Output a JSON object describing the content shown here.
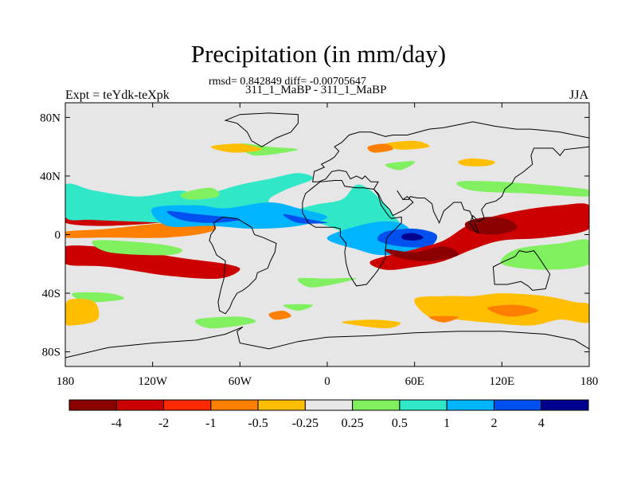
{
  "chart_data": {
    "type": "heatmap",
    "title": "Precipitation (in mm/day)",
    "stats_text": "rmsd= 0.842849 diff= -0.00705647",
    "subtitle": "311_1_MaBP - 311_1_MaBP",
    "left_label": "Expt = teYdk-teXpk",
    "right_label": "JJA",
    "xlim": [
      -180,
      180
    ],
    "ylim": [
      -90,
      90
    ],
    "x_ticks": [
      {
        "value": -180,
        "label": "180"
      },
      {
        "value": -120,
        "label": "120W"
      },
      {
        "value": -60,
        "label": "60W"
      },
      {
        "value": 0,
        "label": "0"
      },
      {
        "value": 60,
        "label": "60E"
      },
      {
        "value": 120,
        "label": "120E"
      },
      {
        "value": 180,
        "label": "180"
      }
    ],
    "y_ticks": [
      {
        "value": 80,
        "label": "80N"
      },
      {
        "value": 40,
        "label": "40N"
      },
      {
        "value": 0,
        "label": "0"
      },
      {
        "value": -40,
        "label": "40S"
      },
      {
        "value": -80,
        "label": "80S"
      }
    ],
    "levels": [
      "-4",
      "-2",
      "-1",
      "-0.5",
      "-0.25",
      "0.25",
      "0.5",
      "1",
      "2",
      "4"
    ],
    "colors": [
      "#8b0000",
      "#cc0000",
      "#ff2800",
      "#ff8000",
      "#ffbe00",
      "#e8e8e8",
      "#80f060",
      "#30e8c8",
      "#00b4ff",
      "#0050f0",
      "#000090"
    ],
    "background_color": "#e6e6e6",
    "anomaly_regions": [
      {
        "level": 1,
        "points": [
          [
            -180,
            16
          ],
          [
            -150,
            14
          ],
          [
            -120,
            16
          ],
          [
            -90,
            20
          ],
          [
            -80,
            18
          ],
          [
            -100,
            10
          ],
          [
            -150,
            6
          ],
          [
            -180,
            8
          ]
        ]
      },
      {
        "level": 1,
        "points": [
          [
            -180,
            -8
          ],
          [
            -140,
            -10
          ],
          [
            -100,
            -16
          ],
          [
            -70,
            -20
          ],
          [
            -60,
            -24
          ],
          [
            -75,
            -30
          ],
          [
            -110,
            -28
          ],
          [
            -150,
            -22
          ],
          [
            -180,
            -20
          ]
        ]
      },
      {
        "level": 3,
        "points": [
          [
            -180,
            2
          ],
          [
            -150,
            4
          ],
          [
            -110,
            8
          ],
          [
            -80,
            8
          ],
          [
            -80,
            2
          ],
          [
            -110,
            -2
          ],
          [
            -150,
            -2
          ],
          [
            -180,
            -2
          ]
        ]
      },
      {
        "level": 7,
        "points": [
          [
            -180,
            34
          ],
          [
            -160,
            30
          ],
          [
            -130,
            26
          ],
          [
            -100,
            30
          ],
          [
            -90,
            24
          ],
          [
            -80,
            28
          ],
          [
            -60,
            34
          ],
          [
            -40,
            38
          ],
          [
            -20,
            42
          ],
          [
            -10,
            38
          ],
          [
            -30,
            30
          ],
          [
            -40,
            22
          ],
          [
            -20,
            12
          ],
          [
            0,
            6
          ],
          [
            20,
            -2
          ],
          [
            40,
            -10
          ],
          [
            60,
            -14
          ],
          [
            70,
            -10
          ],
          [
            60,
            -2
          ],
          [
            50,
            8
          ],
          [
            40,
            20
          ],
          [
            30,
            30
          ],
          [
            20,
            34
          ],
          [
            10,
            24
          ],
          [
            -10,
            20
          ],
          [
            -40,
            12
          ],
          [
            -70,
            6
          ],
          [
            -110,
            8
          ],
          [
            -160,
            10
          ],
          [
            -180,
            12
          ]
        ]
      },
      {
        "level": 8,
        "points": [
          [
            -120,
            18
          ],
          [
            -90,
            20
          ],
          [
            -70,
            18
          ],
          [
            -40,
            22
          ],
          [
            -20,
            18
          ],
          [
            0,
            12
          ],
          [
            -20,
            6
          ],
          [
            -50,
            4
          ],
          [
            -80,
            6
          ],
          [
            -110,
            6
          ]
        ]
      },
      {
        "level": 8,
        "points": [
          [
            0,
            -2
          ],
          [
            30,
            8
          ],
          [
            50,
            8
          ],
          [
            60,
            0
          ],
          [
            65,
            -8
          ],
          [
            40,
            -14
          ],
          [
            20,
            -10
          ]
        ]
      },
      {
        "level": 9,
        "points": [
          [
            -110,
            16
          ],
          [
            -90,
            14
          ],
          [
            -70,
            12
          ],
          [
            -60,
            10
          ],
          [
            -80,
            8
          ],
          [
            -100,
            10
          ]
        ]
      },
      {
        "level": 9,
        "points": [
          [
            -30,
            14
          ],
          [
            -10,
            10
          ],
          [
            0,
            8
          ],
          [
            -20,
            8
          ]
        ]
      },
      {
        "level": 9,
        "points": [
          [
            40,
            2
          ],
          [
            60,
            4
          ],
          [
            75,
            0
          ],
          [
            70,
            -8
          ],
          [
            50,
            -8
          ],
          [
            35,
            -4
          ]
        ]
      },
      {
        "level": 10,
        "points": [
          [
            52,
            0
          ],
          [
            60,
            1
          ],
          [
            66,
            -2
          ],
          [
            60,
            -4
          ],
          [
            52,
            -3
          ]
        ]
      },
      {
        "level": 1,
        "points": [
          [
            60,
            -10
          ],
          [
            80,
            -4
          ],
          [
            100,
            8
          ],
          [
            130,
            16
          ],
          [
            160,
            20
          ],
          [
            180,
            20
          ],
          [
            180,
            4
          ],
          [
            150,
            -2
          ],
          [
            120,
            -4
          ],
          [
            100,
            -10
          ],
          [
            80,
            -18
          ],
          [
            60,
            -22
          ],
          [
            40,
            -24
          ],
          [
            30,
            -18
          ]
        ]
      },
      {
        "level": 0,
        "points": [
          [
            95,
            8
          ],
          [
            110,
            12
          ],
          [
            125,
            10
          ],
          [
            130,
            4
          ],
          [
            115,
            0
          ],
          [
            100,
            2
          ]
        ]
      },
      {
        "level": 0,
        "points": [
          [
            40,
            -10
          ],
          [
            60,
            -12
          ],
          [
            80,
            -8
          ],
          [
            90,
            -14
          ],
          [
            70,
            -18
          ],
          [
            50,
            -16
          ]
        ]
      },
      {
        "level": 6,
        "points": [
          [
            -160,
            -4
          ],
          [
            -120,
            -6
          ],
          [
            -100,
            -10
          ],
          [
            -110,
            -14
          ],
          [
            -150,
            -12
          ]
        ]
      },
      {
        "level": 6,
        "points": [
          [
            -20,
            -30
          ],
          [
            0,
            -30
          ],
          [
            20,
            -30
          ],
          [
            -10,
            -36
          ]
        ]
      },
      {
        "level": 6,
        "points": [
          [
            130,
            -10
          ],
          [
            160,
            -6
          ],
          [
            180,
            -4
          ],
          [
            180,
            -20
          ],
          [
            150,
            -24
          ],
          [
            120,
            -20
          ]
        ]
      },
      {
        "level": 6,
        "points": [
          [
            -175,
            -40
          ],
          [
            -150,
            -40
          ],
          [
            -140,
            -44
          ],
          [
            -165,
            -46
          ]
        ]
      },
      {
        "level": 6,
        "points": [
          [
            -90,
            -58
          ],
          [
            -60,
            -56
          ],
          [
            -50,
            -60
          ],
          [
            -80,
            -64
          ]
        ]
      },
      {
        "level": 6,
        "points": [
          [
            -60,
            62
          ],
          [
            -40,
            60
          ],
          [
            -20,
            58
          ],
          [
            -50,
            54
          ]
        ]
      },
      {
        "level": 6,
        "points": [
          [
            40,
            48
          ],
          [
            60,
            50
          ],
          [
            50,
            44
          ]
        ]
      },
      {
        "level": 6,
        "points": [
          [
            90,
            36
          ],
          [
            120,
            36
          ],
          [
            170,
            32
          ],
          [
            180,
            30
          ],
          [
            180,
            26
          ],
          [
            140,
            28
          ],
          [
            100,
            30
          ]
        ]
      },
      {
        "level": 6,
        "points": [
          [
            -100,
            28
          ],
          [
            -80,
            32
          ],
          [
            -75,
            26
          ],
          [
            -95,
            24
          ]
        ]
      },
      {
        "level": 4,
        "points": [
          [
            -180,
            -48
          ],
          [
            -175,
            -44
          ],
          [
            -160,
            -46
          ],
          [
            -158,
            -58
          ],
          [
            -175,
            -62
          ],
          [
            -180,
            -60
          ]
        ]
      },
      {
        "level": 4,
        "points": [
          [
            60,
            -44
          ],
          [
            80,
            -42
          ],
          [
            100,
            -42
          ],
          [
            120,
            -40
          ],
          [
            150,
            -42
          ],
          [
            170,
            -46
          ],
          [
            180,
            -48
          ],
          [
            180,
            -60
          ],
          [
            160,
            -58
          ],
          [
            140,
            -62
          ],
          [
            110,
            -60
          ],
          [
            90,
            -58
          ],
          [
            70,
            -56
          ]
        ]
      },
      {
        "level": 4,
        "points": [
          [
            10,
            -60
          ],
          [
            30,
            -58
          ],
          [
            50,
            -60
          ],
          [
            40,
            -64
          ]
        ]
      },
      {
        "level": 4,
        "points": [
          [
            90,
            50
          ],
          [
            100,
            52
          ],
          [
            115,
            50
          ],
          [
            110,
            47
          ],
          [
            95,
            47
          ]
        ]
      },
      {
        "level": 4,
        "points": [
          [
            -80,
            60
          ],
          [
            -60,
            62
          ],
          [
            -45,
            58
          ],
          [
            -65,
            56
          ]
        ]
      },
      {
        "level": 4,
        "points": [
          [
            40,
            62
          ],
          [
            60,
            64
          ],
          [
            70,
            60
          ],
          [
            50,
            58
          ]
        ]
      },
      {
        "level": 3,
        "points": [
          [
            -40,
            -54
          ],
          [
            -30,
            -52
          ],
          [
            -25,
            -56
          ],
          [
            -36,
            -58
          ]
        ]
      },
      {
        "level": 3,
        "points": [
          [
            110,
            -50
          ],
          [
            130,
            -48
          ],
          [
            145,
            -52
          ],
          [
            125,
            -56
          ]
        ]
      },
      {
        "level": 3,
        "points": [
          [
            70,
            -56
          ],
          [
            90,
            -56
          ],
          [
            80,
            -60
          ]
        ]
      },
      {
        "level": 3,
        "points": [
          [
            28,
            60
          ],
          [
            40,
            62
          ],
          [
            45,
            58
          ],
          [
            32,
            56
          ]
        ]
      },
      {
        "level": 6,
        "points": [
          [
            -30,
            -48
          ],
          [
            -10,
            -48
          ],
          [
            -20,
            -52
          ]
        ]
      }
    ]
  }
}
